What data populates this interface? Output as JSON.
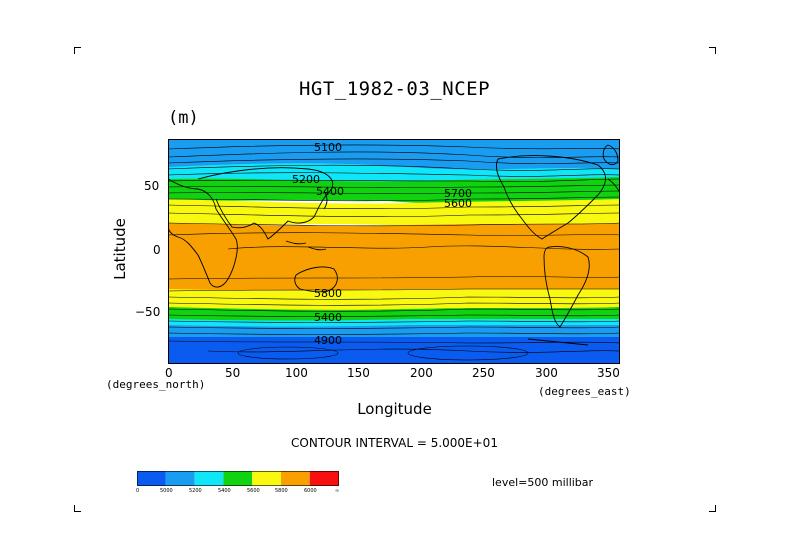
{
  "title": "HGT_1982-03_NCEP",
  "units": "(m)",
  "axes": {
    "y_label": "Latitude",
    "x_label": "Longitude",
    "y_units": "(degrees_north)",
    "x_units": "(degrees_east)",
    "y_ticks": [
      "50",
      "0",
      "−50"
    ],
    "x_ticks": [
      "0",
      "50",
      "100",
      "150",
      "200",
      "250",
      "300",
      "350"
    ]
  },
  "contour_interval": "CONTOUR INTERVAL = 5.000E+01",
  "level": "level=500 millibar",
  "colorbar": {
    "labels": [
      "0",
      "5000",
      "5200",
      "5400",
      "5600",
      "5800",
      "6000",
      "∞"
    ],
    "colors": [
      "#0a5cf0",
      "#1a9cf0",
      "#10e6f8",
      "#10d210",
      "#f8f810",
      "#f8a000",
      "#f81010"
    ]
  },
  "contour_labels": {
    "north_top": "5100",
    "north_mid": "5200",
    "north_mid2": "5400",
    "north_right": "5700",
    "north_right2": "5600",
    "south_top": "5800",
    "south_mid": "5400",
    "south_bottom": "4900"
  },
  "chart_data": {
    "type": "heatmap",
    "title": "HGT_1982-03_NCEP",
    "variable_units": "(m)",
    "xlabel": "Longitude",
    "ylabel": "Latitude",
    "xlim": [
      0,
      360
    ],
    "ylim": [
      -90,
      90
    ],
    "x_ticks": [
      0,
      50,
      100,
      150,
      200,
      250,
      300,
      350
    ],
    "y_ticks": [
      -50,
      0,
      50
    ],
    "level": "500 millibar",
    "contour_interval": 50,
    "color_levels": [
      0,
      5000,
      5200,
      5400,
      5600,
      5800,
      6000
    ],
    "approx_bands_by_latitude": [
      {
        "lat_range": [
          60,
          90
        ],
        "range_m": "5000-5200"
      },
      {
        "lat_range": [
          40,
          60
        ],
        "range_m": "5200-5600"
      },
      {
        "lat_range": [
          25,
          40
        ],
        "range_m": "5600-5800"
      },
      {
        "lat_range": [
          -30,
          25
        ],
        "range_m": "5800-6000"
      },
      {
        "lat_range": [
          -45,
          -30
        ],
        "range_m": "5600-5800"
      },
      {
        "lat_range": [
          -60,
          -45
        ],
        "range_m": "5200-5600"
      },
      {
        "lat_range": [
          -90,
          -60
        ],
        "range_m": "0-5200"
      }
    ]
  }
}
